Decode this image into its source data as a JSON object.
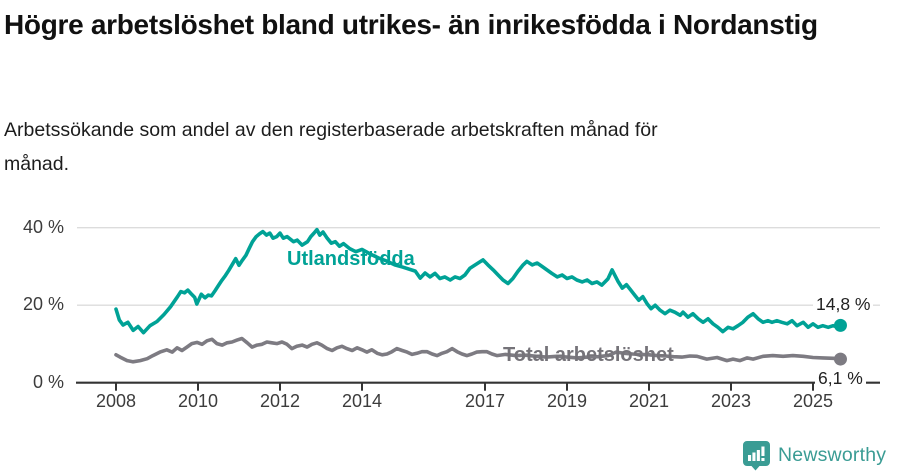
{
  "header": {
    "title": "Högre arbetslöshet bland utrikes- än inrikesfödda i Nordanstig",
    "subtitle": "Arbetssökande som andel av den registerbaserade arbetskraften månad för månad."
  },
  "chart_data": {
    "type": "line",
    "unit": "%",
    "grid": "horizontal",
    "colors": {
      "utlandsfodda": "#00A296",
      "total": "#7D7B82",
      "axis": "#333333",
      "gridline": "#dcdcdc"
    },
    "y_axis": {
      "ticks": [
        0,
        20,
        40
      ],
      "tick_labels": [
        "0 %",
        "20 %",
        "40 %"
      ],
      "range": [
        0,
        42
      ]
    },
    "x_axis": {
      "ticks": [
        2008,
        2010,
        2012,
        2014,
        2017,
        2019,
        2021,
        2023,
        2025
      ],
      "tick_labels": [
        "2008",
        "2010",
        "2012",
        "2014",
        "2017",
        "2019",
        "2021",
        "2023",
        "2025"
      ],
      "range": [
        2008,
        2025.75
      ]
    },
    "series": [
      {
        "name": "Utlandsfödda",
        "color": "#00A296",
        "end_label": "14,8 %",
        "end_value": 14.8,
        "points": [
          [
            2008.0,
            19.0
          ],
          [
            2008.08,
            16.2
          ],
          [
            2008.17,
            14.9
          ],
          [
            2008.29,
            15.6
          ],
          [
            2008.42,
            13.5
          ],
          [
            2008.54,
            14.5
          ],
          [
            2008.67,
            12.9
          ],
          [
            2008.83,
            14.7
          ],
          [
            2009.0,
            15.8
          ],
          [
            2009.17,
            17.6
          ],
          [
            2009.33,
            19.6
          ],
          [
            2009.5,
            22.2
          ],
          [
            2009.58,
            23.5
          ],
          [
            2009.67,
            23.2
          ],
          [
            2009.75,
            23.9
          ],
          [
            2009.83,
            23.0
          ],
          [
            2009.92,
            22.0
          ],
          [
            2009.97,
            20.3
          ],
          [
            2010.08,
            22.8
          ],
          [
            2010.17,
            21.9
          ],
          [
            2010.25,
            22.6
          ],
          [
            2010.33,
            22.4
          ],
          [
            2010.42,
            23.8
          ],
          [
            2010.5,
            25.1
          ],
          [
            2010.58,
            26.4
          ],
          [
            2010.67,
            27.7
          ],
          [
            2010.75,
            29.0
          ],
          [
            2010.83,
            30.4
          ],
          [
            2010.92,
            32.0
          ],
          [
            2011.0,
            30.3
          ],
          [
            2011.08,
            31.6
          ],
          [
            2011.17,
            32.9
          ],
          [
            2011.25,
            34.7
          ],
          [
            2011.33,
            36.4
          ],
          [
            2011.42,
            37.7
          ],
          [
            2011.5,
            38.4
          ],
          [
            2011.58,
            39.0
          ],
          [
            2011.67,
            38.1
          ],
          [
            2011.75,
            38.6
          ],
          [
            2011.83,
            37.3
          ],
          [
            2011.92,
            37.7
          ],
          [
            2012.0,
            38.6
          ],
          [
            2012.08,
            37.3
          ],
          [
            2012.17,
            37.7
          ],
          [
            2012.33,
            36.4
          ],
          [
            2012.42,
            36.8
          ],
          [
            2012.54,
            35.5
          ],
          [
            2012.67,
            36.4
          ],
          [
            2012.75,
            37.7
          ],
          [
            2012.83,
            38.6
          ],
          [
            2012.9,
            39.5
          ],
          [
            2012.97,
            38.1
          ],
          [
            2013.05,
            38.9
          ],
          [
            2013.15,
            37.3
          ],
          [
            2013.25,
            36.0
          ],
          [
            2013.35,
            36.4
          ],
          [
            2013.45,
            35.2
          ],
          [
            2013.55,
            35.9
          ],
          [
            2013.7,
            34.6
          ],
          [
            2013.85,
            33.8
          ],
          [
            2014.0,
            34.4
          ],
          [
            2014.2,
            33.2
          ],
          [
            2014.4,
            32.2
          ],
          [
            2014.6,
            31.4
          ],
          [
            2014.8,
            30.4
          ],
          [
            2015.0,
            29.8
          ],
          [
            2015.3,
            28.8
          ],
          [
            2015.42,
            27.0
          ],
          [
            2015.54,
            28.3
          ],
          [
            2015.66,
            27.3
          ],
          [
            2015.78,
            28.2
          ],
          [
            2015.9,
            26.9
          ],
          [
            2016.02,
            27.3
          ],
          [
            2016.15,
            26.5
          ],
          [
            2016.27,
            27.3
          ],
          [
            2016.39,
            26.9
          ],
          [
            2016.51,
            27.8
          ],
          [
            2016.63,
            29.5
          ],
          [
            2016.76,
            30.4
          ],
          [
            2016.95,
            31.7
          ],
          [
            2017.07,
            30.4
          ],
          [
            2017.2,
            29.1
          ],
          [
            2017.32,
            27.8
          ],
          [
            2017.44,
            26.5
          ],
          [
            2017.56,
            25.6
          ],
          [
            2017.68,
            26.9
          ],
          [
            2017.8,
            28.7
          ],
          [
            2017.93,
            30.4
          ],
          [
            2018.02,
            31.3
          ],
          [
            2018.15,
            30.4
          ],
          [
            2018.27,
            30.9
          ],
          [
            2018.39,
            30.0
          ],
          [
            2018.51,
            29.1
          ],
          [
            2018.63,
            28.2
          ],
          [
            2018.76,
            27.3
          ],
          [
            2018.88,
            27.8
          ],
          [
            2019.0,
            26.9
          ],
          [
            2019.12,
            27.3
          ],
          [
            2019.24,
            26.5
          ],
          [
            2019.37,
            26.0
          ],
          [
            2019.49,
            26.5
          ],
          [
            2019.61,
            25.6
          ],
          [
            2019.73,
            26.0
          ],
          [
            2019.85,
            25.2
          ],
          [
            2020.0,
            26.8
          ],
          [
            2020.1,
            29.1
          ],
          [
            2020.25,
            26.0
          ],
          [
            2020.35,
            24.4
          ],
          [
            2020.45,
            25.3
          ],
          [
            2020.55,
            24.0
          ],
          [
            2020.65,
            22.6
          ],
          [
            2020.75,
            21.3
          ],
          [
            2020.85,
            22.2
          ],
          [
            2020.95,
            20.4
          ],
          [
            2021.05,
            19.1
          ],
          [
            2021.15,
            20.0
          ],
          [
            2021.27,
            18.7
          ],
          [
            2021.39,
            17.8
          ],
          [
            2021.51,
            18.7
          ],
          [
            2021.63,
            18.2
          ],
          [
            2021.76,
            17.4
          ],
          [
            2021.83,
            18.2
          ],
          [
            2021.95,
            16.9
          ],
          [
            2022.07,
            17.8
          ],
          [
            2022.2,
            16.5
          ],
          [
            2022.32,
            15.6
          ],
          [
            2022.44,
            16.5
          ],
          [
            2022.56,
            15.2
          ],
          [
            2022.68,
            14.3
          ],
          [
            2022.8,
            13.2
          ],
          [
            2022.93,
            14.3
          ],
          [
            2023.05,
            13.9
          ],
          [
            2023.17,
            14.7
          ],
          [
            2023.29,
            15.6
          ],
          [
            2023.41,
            16.9
          ],
          [
            2023.54,
            17.8
          ],
          [
            2023.66,
            16.5
          ],
          [
            2023.78,
            15.6
          ],
          [
            2023.9,
            16.0
          ],
          [
            2024.0,
            15.6
          ],
          [
            2024.12,
            16.0
          ],
          [
            2024.24,
            15.6
          ],
          [
            2024.37,
            15.2
          ],
          [
            2024.49,
            16.0
          ],
          [
            2024.61,
            14.7
          ],
          [
            2024.76,
            15.6
          ],
          [
            2024.88,
            14.3
          ],
          [
            2025.0,
            15.2
          ],
          [
            2025.12,
            14.3
          ],
          [
            2025.24,
            14.7
          ],
          [
            2025.37,
            14.3
          ],
          [
            2025.49,
            14.7
          ],
          [
            2025.6,
            14.4
          ],
          [
            2025.67,
            14.8
          ]
        ]
      },
      {
        "name": "Total arbetslöshet",
        "color": "#7D7B82",
        "end_label": "6,1 %",
        "end_value": 6.1,
        "points": [
          [
            2008.0,
            7.2
          ],
          [
            2008.1,
            6.6
          ],
          [
            2008.27,
            5.7
          ],
          [
            2008.41,
            5.4
          ],
          [
            2008.59,
            5.7
          ],
          [
            2008.76,
            6.2
          ],
          [
            2008.9,
            7.0
          ],
          [
            2009.07,
            7.9
          ],
          [
            2009.24,
            8.5
          ],
          [
            2009.37,
            7.9
          ],
          [
            2009.49,
            9.0
          ],
          [
            2009.61,
            8.3
          ],
          [
            2009.73,
            9.2
          ],
          [
            2009.85,
            10.1
          ],
          [
            2009.98,
            10.4
          ],
          [
            2010.1,
            9.9
          ],
          [
            2010.22,
            10.8
          ],
          [
            2010.34,
            11.2
          ],
          [
            2010.46,
            10.1
          ],
          [
            2010.59,
            9.7
          ],
          [
            2010.71,
            10.3
          ],
          [
            2010.83,
            10.5
          ],
          [
            2010.95,
            11.0
          ],
          [
            2011.07,
            11.4
          ],
          [
            2011.2,
            10.3
          ],
          [
            2011.32,
            9.2
          ],
          [
            2011.44,
            9.7
          ],
          [
            2011.56,
            9.9
          ],
          [
            2011.68,
            10.5
          ],
          [
            2011.8,
            10.3
          ],
          [
            2011.93,
            10.1
          ],
          [
            2012.05,
            10.5
          ],
          [
            2012.17,
            9.9
          ],
          [
            2012.29,
            8.8
          ],
          [
            2012.41,
            9.4
          ],
          [
            2012.54,
            9.7
          ],
          [
            2012.66,
            9.2
          ],
          [
            2012.78,
            9.9
          ],
          [
            2012.9,
            10.3
          ],
          [
            2013.02,
            9.7
          ],
          [
            2013.15,
            8.8
          ],
          [
            2013.27,
            8.3
          ],
          [
            2013.39,
            9.0
          ],
          [
            2013.51,
            9.4
          ],
          [
            2013.63,
            8.8
          ],
          [
            2013.76,
            8.3
          ],
          [
            2013.88,
            9.0
          ],
          [
            2014.0,
            8.5
          ],
          [
            2014.12,
            7.9
          ],
          [
            2014.24,
            8.5
          ],
          [
            2014.37,
            7.6
          ],
          [
            2014.49,
            7.2
          ],
          [
            2014.61,
            7.4
          ],
          [
            2014.73,
            8.0
          ],
          [
            2014.85,
            8.8
          ],
          [
            2014.98,
            8.3
          ],
          [
            2015.1,
            7.9
          ],
          [
            2015.22,
            7.3
          ],
          [
            2015.34,
            7.6
          ],
          [
            2015.46,
            8.0
          ],
          [
            2015.59,
            8.0
          ],
          [
            2015.71,
            7.4
          ],
          [
            2015.83,
            7.0
          ],
          [
            2015.95,
            7.6
          ],
          [
            2016.07,
            8.0
          ],
          [
            2016.2,
            8.8
          ],
          [
            2016.32,
            8.0
          ],
          [
            2016.44,
            7.4
          ],
          [
            2016.56,
            7.0
          ],
          [
            2016.68,
            7.4
          ],
          [
            2016.8,
            7.9
          ],
          [
            2016.93,
            8.0
          ],
          [
            2017.05,
            8.0
          ],
          [
            2017.17,
            7.4
          ],
          [
            2017.29,
            7.0
          ],
          [
            2017.5,
            7.3
          ],
          [
            2017.75,
            7.0
          ],
          [
            2018.0,
            7.1
          ],
          [
            2018.25,
            6.8
          ],
          [
            2018.5,
            6.6
          ],
          [
            2018.75,
            6.8
          ],
          [
            2019.0,
            6.6
          ],
          [
            2019.25,
            6.4
          ],
          [
            2019.5,
            6.6
          ],
          [
            2019.75,
            6.7
          ],
          [
            2020.0,
            7.0
          ],
          [
            2020.2,
            7.9
          ],
          [
            2020.4,
            7.6
          ],
          [
            2020.6,
            7.4
          ],
          [
            2020.8,
            7.3
          ],
          [
            2021.0,
            7.2
          ],
          [
            2021.2,
            7.0
          ],
          [
            2021.4,
            6.9
          ],
          [
            2021.6,
            6.7
          ],
          [
            2021.8,
            6.6
          ],
          [
            2022.0,
            6.9
          ],
          [
            2022.17,
            6.8
          ],
          [
            2022.41,
            6.1
          ],
          [
            2022.66,
            6.5
          ],
          [
            2022.9,
            5.7
          ],
          [
            2023.05,
            6.1
          ],
          [
            2023.22,
            5.7
          ],
          [
            2023.39,
            6.4
          ],
          [
            2023.54,
            6.1
          ],
          [
            2023.78,
            6.8
          ],
          [
            2024.02,
            7.0
          ],
          [
            2024.27,
            6.8
          ],
          [
            2024.51,
            7.0
          ],
          [
            2024.76,
            6.8
          ],
          [
            2025.0,
            6.5
          ],
          [
            2025.24,
            6.4
          ],
          [
            2025.49,
            6.3
          ],
          [
            2025.67,
            6.1
          ]
        ]
      }
    ]
  },
  "footer": {
    "brand": "Newsworthy",
    "logo_color": "#3A9C94"
  }
}
